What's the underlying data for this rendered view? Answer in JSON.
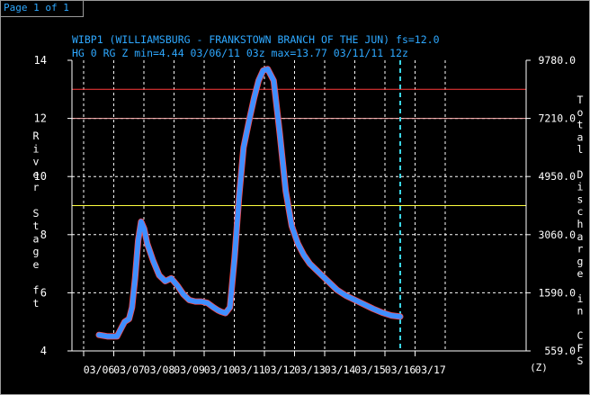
{
  "pager": "Page 1 of 1",
  "colors": {
    "title": "#2ea8ff",
    "axis_text": "#ffffff",
    "grid": "#ffffff",
    "series": "#3f8fff",
    "series_edge": "#ff4a4a",
    "threshold_upper": "#ff3a3a",
    "threshold_mid": "#ffb0b0",
    "threshold_lower": "#ffff40",
    "now_line": "#3ad6e6"
  },
  "chart_data": {
    "type": "line",
    "title": "WIBP1 (WILLIAMSBURG - FRANKSTOWN BRANCH OF THE JUN) fs=12.0",
    "subtitle": "HG 0 RG Z min=4.44 03/06/11 03z max=13.77 03/11/11 12z",
    "ylabel": "River Stage ft",
    "ylabel_right": "Total Discharge in CFS",
    "xlabel_unit": "(Z)",
    "ylim": [
      4,
      14
    ],
    "xlim": [
      0,
      12
    ],
    "grid": true,
    "y_ticks": [
      "4",
      "6",
      "8",
      "10",
      "12",
      "14"
    ],
    "y_right_ticks": [
      "559.0",
      "1590.0",
      "3060.0",
      "4950.0",
      "7210.0",
      "9780.0"
    ],
    "x_ticks": [
      "03/06",
      "03/07",
      "03/08",
      "03/09",
      "03/10",
      "03/11",
      "03/12",
      "03/13",
      "03/14",
      "03/15",
      "03/16",
      "03/17"
    ],
    "thresholds": [
      13.0,
      12.0,
      9.0
    ],
    "now_line_x": 10.0,
    "series": [
      {
        "x": [
          0.0,
          0.3,
          0.6,
          0.75,
          0.85,
          1.0,
          1.1,
          1.2,
          1.3,
          1.4,
          1.5,
          1.6,
          1.8,
          2.0,
          2.2,
          2.4,
          2.6,
          2.8,
          3.0,
          3.2,
          3.4,
          3.6,
          3.8,
          3.95,
          4.05,
          4.2,
          4.35,
          4.5,
          4.65,
          4.8,
          5.0,
          5.15,
          5.3,
          5.45,
          5.6,
          5.8,
          6.0,
          6.2,
          6.4,
          6.6,
          6.8,
          7.0,
          7.3,
          7.6,
          7.9,
          8.2,
          8.5,
          8.8,
          9.1,
          9.4,
          9.7,
          10.0
        ],
        "y": [
          4.55,
          4.5,
          4.5,
          4.8,
          5.0,
          5.1,
          5.5,
          6.5,
          7.8,
          8.45,
          8.2,
          7.7,
          7.1,
          6.6,
          6.4,
          6.5,
          6.25,
          5.95,
          5.75,
          5.7,
          5.7,
          5.65,
          5.5,
          5.4,
          5.35,
          5.3,
          5.5,
          7.2,
          9.3,
          11.0,
          12.0,
          12.7,
          13.3,
          13.65,
          13.7,
          13.3,
          11.5,
          9.5,
          8.3,
          7.7,
          7.3,
          7.0,
          6.7,
          6.4,
          6.1,
          5.9,
          5.75,
          5.6,
          5.45,
          5.32,
          5.22,
          5.18
        ]
      }
    ]
  }
}
